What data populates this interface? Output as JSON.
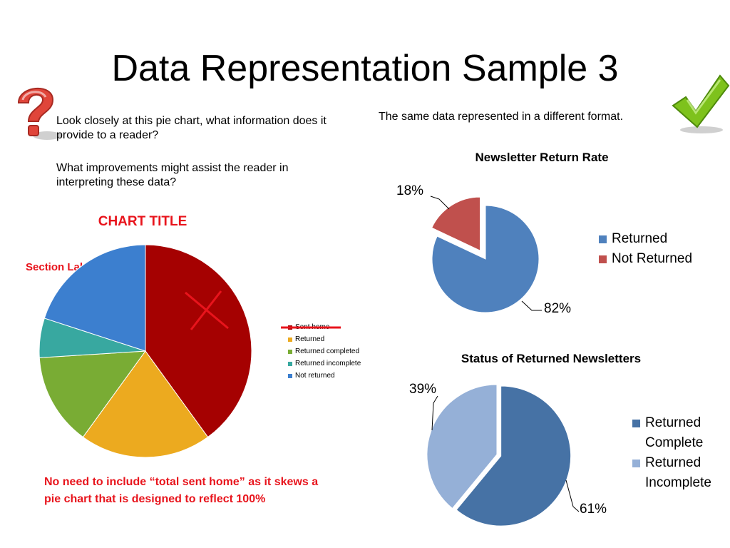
{
  "slide": {
    "title": "Data Representation Sample 3"
  },
  "left": {
    "question1": "Look closely at this pie chart, what information does it provide to a reader?",
    "question2": "What improvements might assist the reader in interpreting these data?",
    "chart_title": "CHART TITLE",
    "section_labels": "Section Labels",
    "note": "No need to include “total sent home” as it skews a pie chart that is designed to reflect 100%"
  },
  "right": {
    "intro": "The same data represented in a different format."
  },
  "colors": {
    "annotation_red": "#e8141c",
    "question_mark_red": "#e0453a",
    "check_green": "#7ec21c"
  },
  "icons": [
    "question-mark-icon",
    "check-mark-icon"
  ],
  "chart_data": [
    {
      "type": "pie",
      "title": "CHART TITLE",
      "categories": [
        "Sent home",
        "Returned",
        "Returned completed",
        "Returned incomplete",
        "Not returned"
      ],
      "values": [
        40,
        20,
        14,
        6,
        20
      ],
      "colors": [
        "#a50101",
        "#ecaa1f",
        "#79ac34",
        "#38a8a0",
        "#3c7fcf"
      ],
      "legend": "right",
      "legend_struck": "Sent home"
    },
    {
      "type": "pie",
      "title": "Newsletter Return Rate",
      "categories": [
        "Returned",
        "Not Returned"
      ],
      "values": [
        82,
        18
      ],
      "labels": [
        "82%",
        "18%"
      ],
      "colors": [
        "#4f81bd",
        "#c0504d"
      ],
      "exploded": "Not Returned",
      "legend": "right"
    },
    {
      "type": "pie",
      "title": "Status of Returned Newsletters",
      "categories": [
        "Returned Complete",
        "Returned Incomplete"
      ],
      "values": [
        61,
        39
      ],
      "labels": [
        "61%",
        "39%"
      ],
      "colors": [
        "#4672a5",
        "#95b0d7"
      ],
      "exploded": "Returned Complete",
      "legend": "right"
    }
  ]
}
